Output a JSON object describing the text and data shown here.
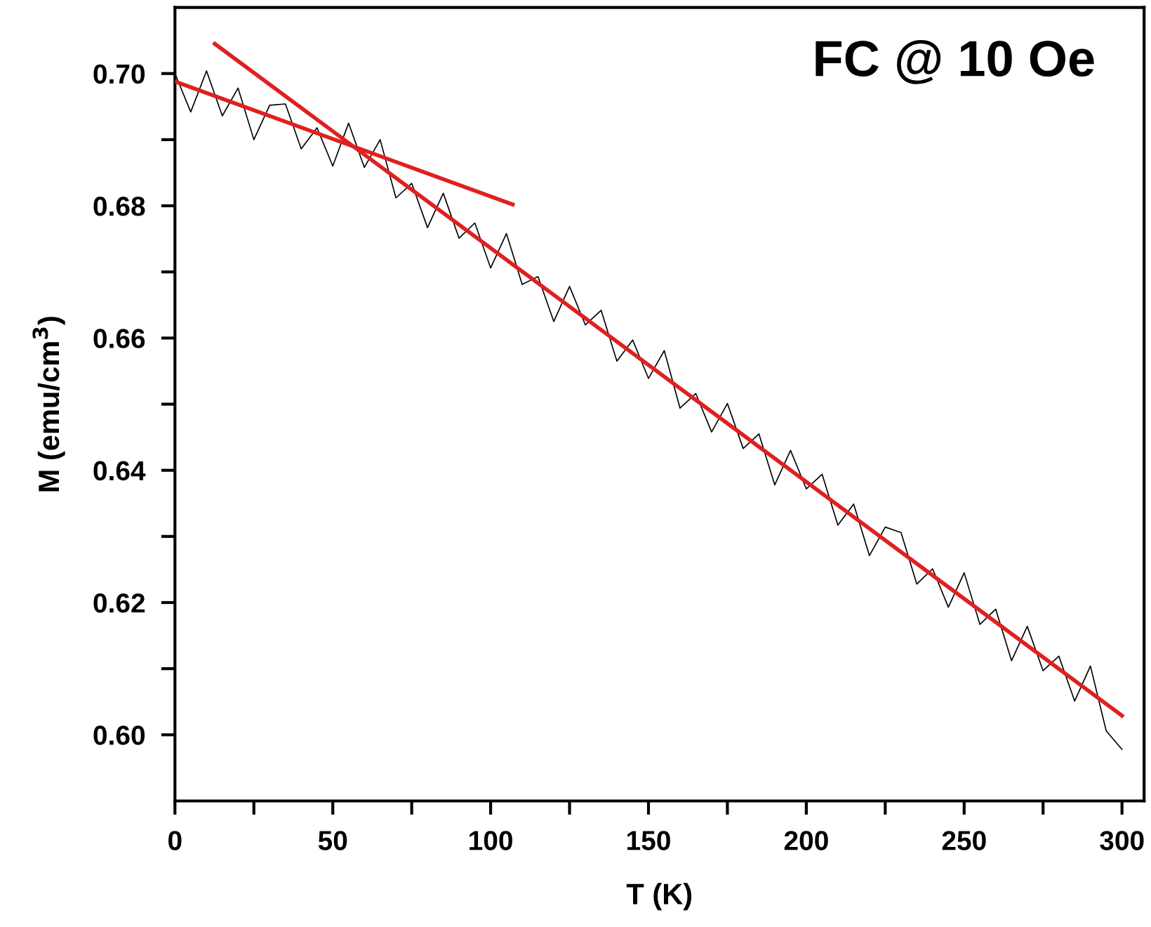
{
  "chart_data": {
    "type": "line",
    "xlabel": "T (K)",
    "ylabel": "M (emu/cm$^{3}$)",
    "annotations": [
      "FC @ 10 Oe"
    ],
    "series": [
      {
        "color": "#000000",
        "x": [
          0,
          5,
          10,
          15,
          20,
          25,
          30,
          35,
          40,
          45,
          50,
          55,
          60,
          65,
          70,
          75,
          80,
          85,
          90,
          95,
          100,
          105,
          110,
          115,
          120,
          125,
          130,
          135,
          140,
          145,
          150,
          155,
          160,
          165,
          170,
          175,
          180,
          185,
          190,
          195,
          200,
          205,
          210,
          215,
          220,
          225,
          230,
          235,
          240,
          245,
          250,
          255,
          260,
          265,
          270,
          275,
          280,
          285,
          290,
          295,
          300
        ],
        "values": [
          0.7,
          0.6942,
          0.7004,
          0.6936,
          0.6978,
          0.69,
          0.6952,
          0.6954,
          0.6886,
          0.6918,
          0.686,
          0.6925,
          0.6858,
          0.69,
          0.6812,
          0.6834,
          0.6767,
          0.6819,
          0.6751,
          0.6774,
          0.6706,
          0.6758,
          0.6681,
          0.6693,
          0.6625,
          0.6678,
          0.662,
          0.6642,
          0.6565,
          0.6597,
          0.6539,
          0.6581,
          0.6494,
          0.6516,
          0.6458,
          0.6501,
          0.6433,
          0.6455,
          0.6378,
          0.643,
          0.6372,
          0.6394,
          0.6317,
          0.6349,
          0.6271,
          0.6314,
          0.6306,
          0.6228,
          0.6251,
          0.6193,
          0.6245,
          0.6167,
          0.619,
          0.6112,
          0.6164,
          0.6097,
          0.6119,
          0.6051,
          0.6104,
          0.6006,
          0.5978
        ]
      },
      {
        "color": "#e02020",
        "x": [
          0,
          107
        ],
        "values": [
          0.6988,
          0.6802
        ]
      },
      {
        "color": "#e02020",
        "x": [
          12.6,
          300
        ],
        "values": [
          0.7045,
          0.6029
        ]
      }
    ],
    "xlim": [
      0,
      307
    ],
    "xticks": [
      0,
      {
        "value": 25,
        "label": null
      },
      50,
      {
        "value": 75,
        "label": null
      },
      100,
      {
        "value": 125,
        "label": null
      },
      150,
      {
        "value": 175,
        "label": null
      },
      200,
      {
        "value": 225,
        "label": null
      },
      250,
      {
        "value": 275,
        "label": null
      },
      300
    ],
    "ylim": [
      0.59,
      0.71
    ],
    "yticks": [
      {
        "value": 0.6,
        "label": "0.60"
      },
      {
        "value": 0.61,
        "label": null
      },
      {
        "value": 0.62,
        "label": "0.62"
      },
      {
        "value": 0.63,
        "label": null
      },
      {
        "value": 0.64,
        "label": "0.64"
      },
      {
        "value": 0.65,
        "label": null
      },
      {
        "value": 0.66,
        "label": "0.66"
      },
      {
        "value": 0.67,
        "label": null
      },
      {
        "value": 0.68,
        "label": "0.68"
      },
      {
        "value": 0.69,
        "label": null
      },
      {
        "value": 0.7,
        "label": "0.70"
      }
    ],
    "grid": false,
    "legend": false,
    "marker": "none",
    "line_style": "solid"
  }
}
